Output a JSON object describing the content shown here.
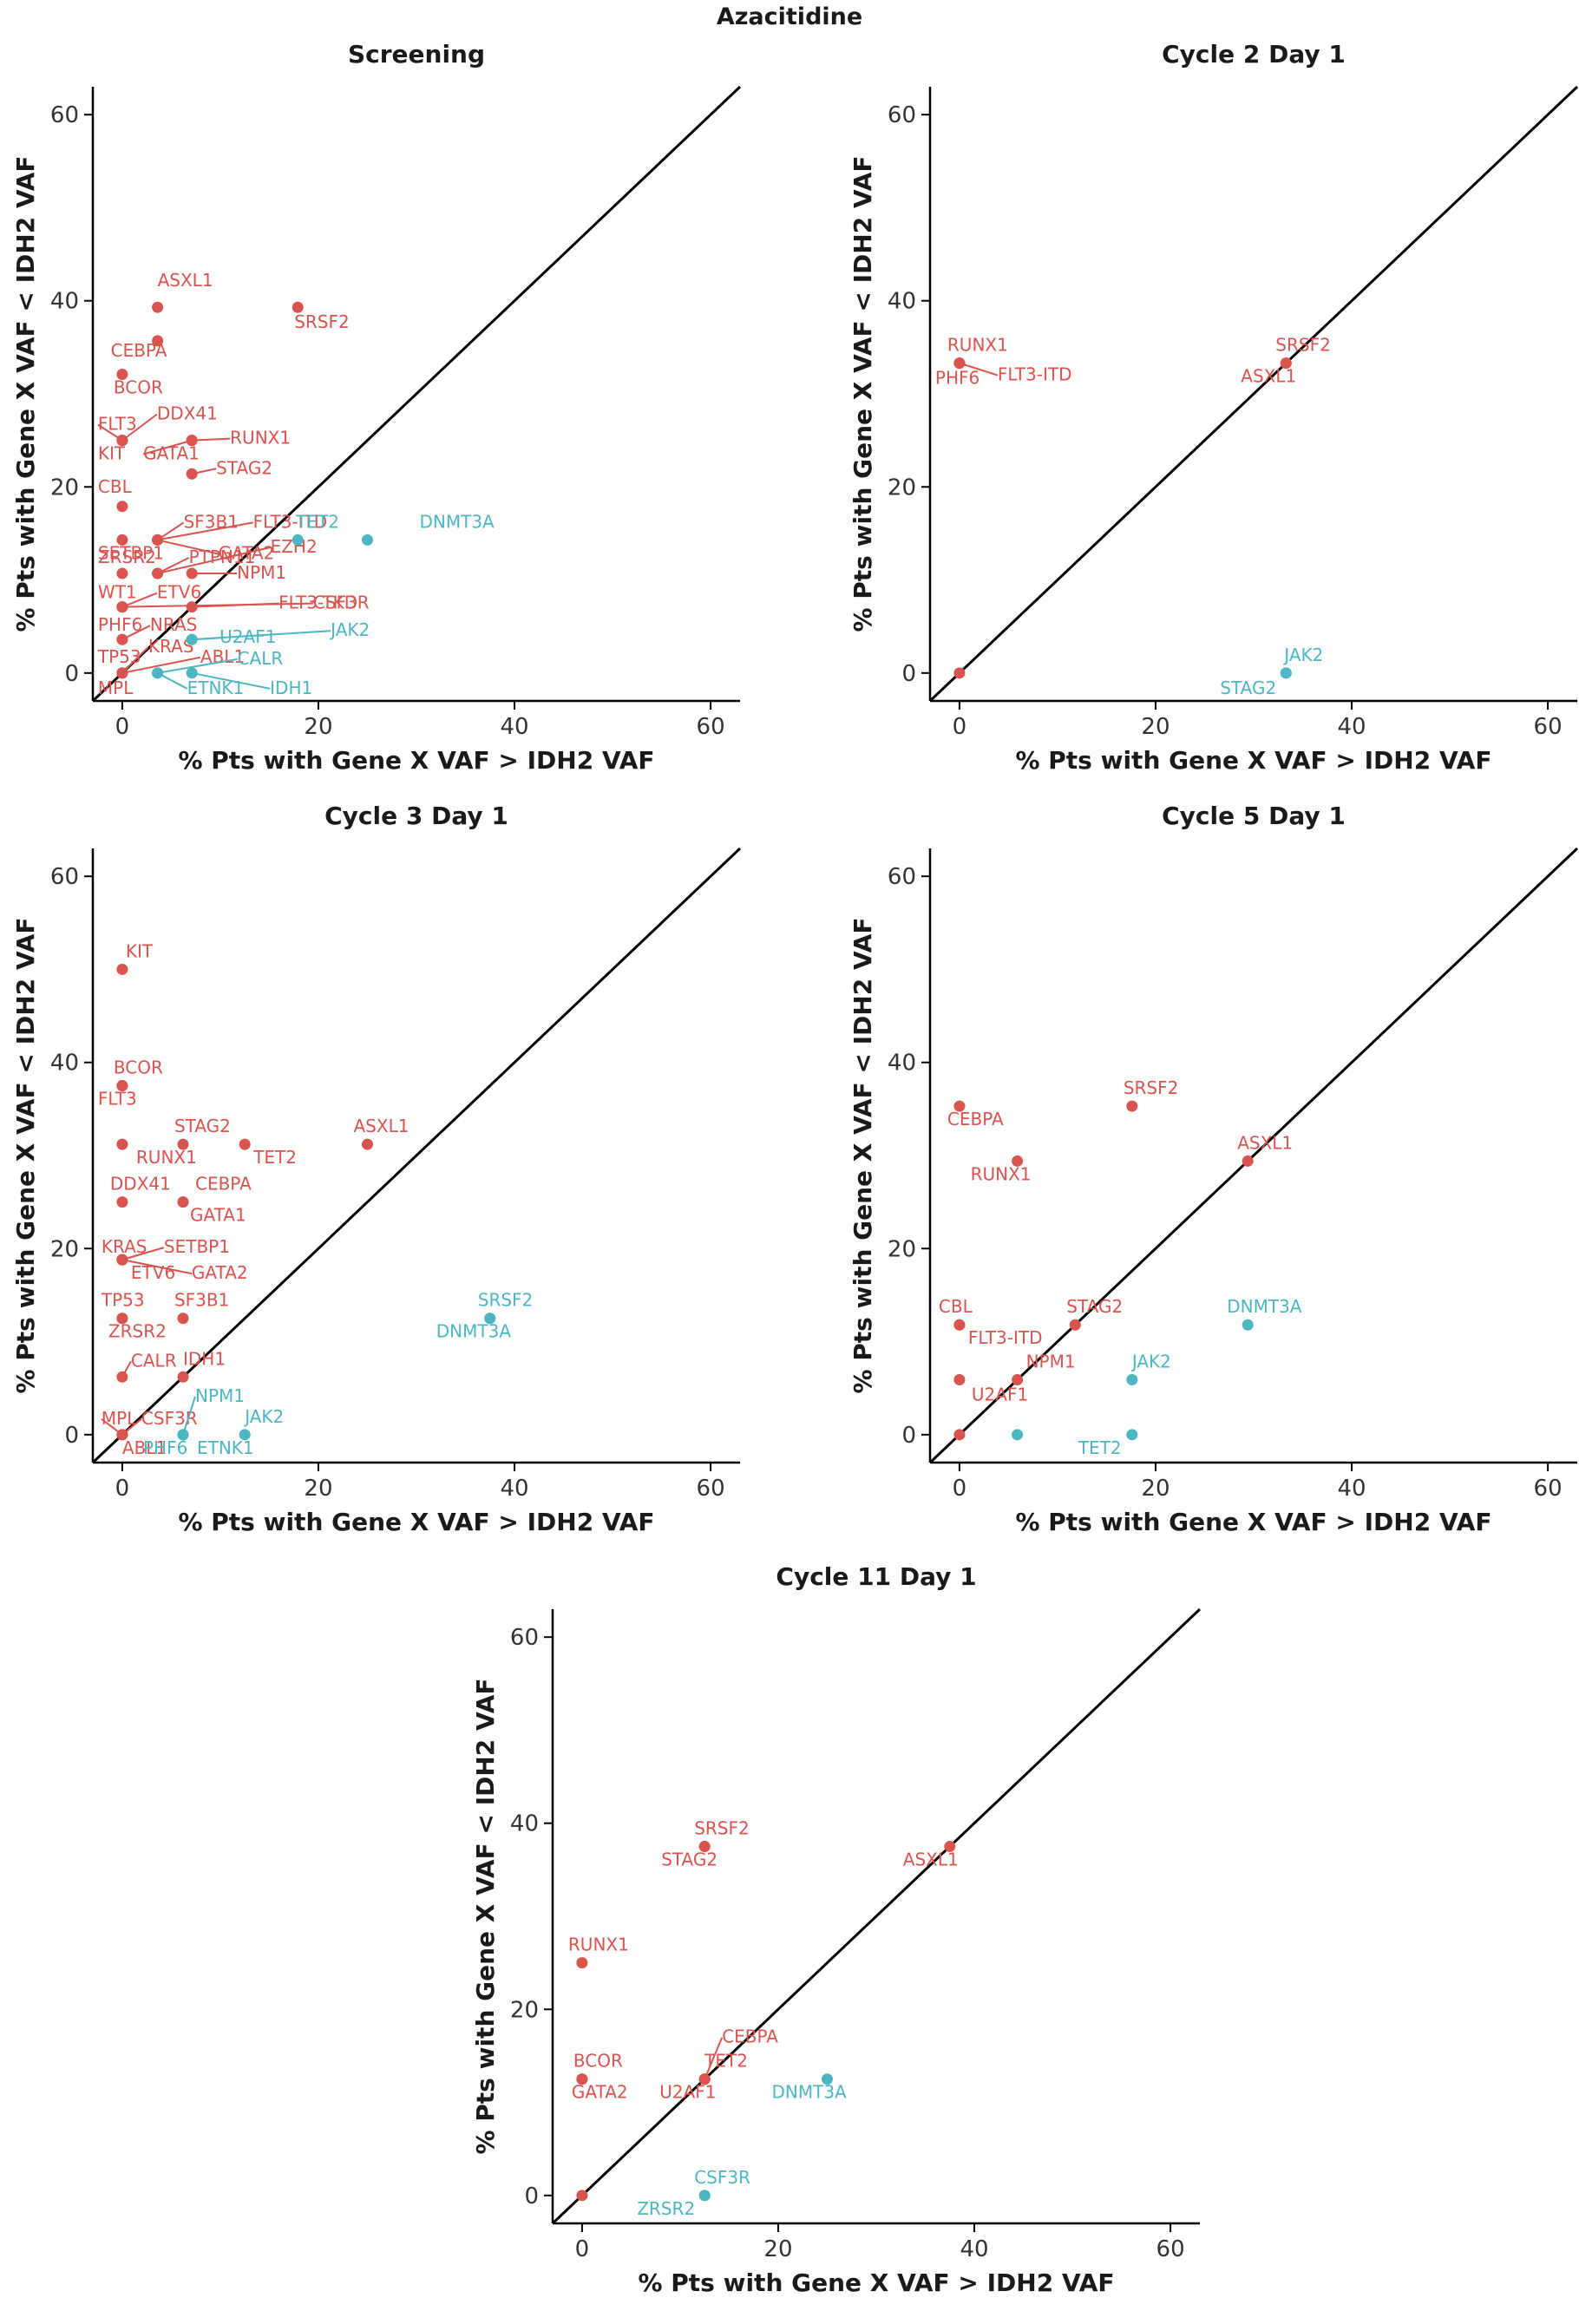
{
  "title": "Azacitidine",
  "colors": {
    "above": "#d9534f",
    "below": "#4db6c3",
    "axis": "#000000"
  },
  "chart_data": [
    {
      "type": "scatter",
      "title": "Screening",
      "xlabel": "% Pts with Gene X VAF > IDH2 VAF",
      "ylabel": "% Pts with Gene X VAF < IDH2 VAF",
      "xlim": [
        -3,
        63
      ],
      "ylim": [
        -3,
        63
      ],
      "xticks": [
        "0",
        "20",
        "40",
        "60"
      ],
      "yticks": [
        "0",
        "20",
        "40",
        "60"
      ],
      "reference_line": "y = x",
      "points": [
        {
          "label": "ASXL1",
          "x": 3.6,
          "y": 39.3,
          "group": "above"
        },
        {
          "label": "SRSF2",
          "x": 17.9,
          "y": 39.3,
          "group": "above"
        },
        {
          "label": "CEBPA",
          "x": 3.6,
          "y": 35.7,
          "group": "above"
        },
        {
          "label": "BCOR",
          "x": 0,
          "y": 32.1,
          "group": "above"
        },
        {
          "label": "FLT3",
          "x": 0,
          "y": 25.0,
          "group": "above"
        },
        {
          "label": "KIT",
          "x": 0,
          "y": 25.0,
          "group": "above"
        },
        {
          "label": "DDX41",
          "x": 0,
          "y": 25.0,
          "group": "above"
        },
        {
          "label": "RUNX1",
          "x": 7.1,
          "y": 25.0,
          "group": "above"
        },
        {
          "label": "GATA1",
          "x": 7.1,
          "y": 25.0,
          "group": "above"
        },
        {
          "label": "STAG2",
          "x": 7.1,
          "y": 21.4,
          "group": "above"
        },
        {
          "label": "CBL",
          "x": 0,
          "y": 17.9,
          "group": "above"
        },
        {
          "label": "SF3B1",
          "x": 3.6,
          "y": 14.3,
          "group": "above"
        },
        {
          "label": "FLT3-ITD",
          "x": 3.6,
          "y": 14.3,
          "group": "above"
        },
        {
          "label": "SETBP1",
          "x": 0,
          "y": 14.3,
          "group": "above"
        },
        {
          "label": "GATA2",
          "x": 3.6,
          "y": 14.3,
          "group": "above"
        },
        {
          "label": "ZRSR2",
          "x": 0,
          "y": 10.7,
          "group": "above"
        },
        {
          "label": "PTPN11",
          "x": 3.6,
          "y": 10.7,
          "group": "above"
        },
        {
          "label": "EZH2",
          "x": 3.6,
          "y": 10.7,
          "group": "above"
        },
        {
          "label": "NPM1",
          "x": 7.1,
          "y": 10.7,
          "group": "above"
        },
        {
          "label": "WT1",
          "x": 0,
          "y": 7.1,
          "group": "above"
        },
        {
          "label": "ETV6",
          "x": 0,
          "y": 7.1,
          "group": "above"
        },
        {
          "label": "FLT3-TKD",
          "x": 7.1,
          "y": 7.1,
          "group": "above"
        },
        {
          "label": "CSF3R",
          "x": 0,
          "y": 7.1,
          "group": "above"
        },
        {
          "label": "PHF6",
          "x": 0,
          "y": 3.6,
          "group": "above"
        },
        {
          "label": "NRAS",
          "x": 0,
          "y": 3.6,
          "group": "above"
        },
        {
          "label": "TP53",
          "x": 0,
          "y": 0,
          "group": "above"
        },
        {
          "label": "KRAS",
          "x": 0,
          "y": 0,
          "group": "above"
        },
        {
          "label": "ABL1",
          "x": 0,
          "y": 0,
          "group": "above"
        },
        {
          "label": "MPL",
          "x": 0,
          "y": 0,
          "group": "above"
        },
        {
          "label": "TET2",
          "x": 17.9,
          "y": 14.3,
          "group": "below"
        },
        {
          "label": "DNMT3A",
          "x": 25.0,
          "y": 14.3,
          "group": "below"
        },
        {
          "label": "U2AF1",
          "x": 7.1,
          "y": 3.6,
          "group": "below"
        },
        {
          "label": "JAK2",
          "x": 7.1,
          "y": 3.6,
          "group": "below"
        },
        {
          "label": "CALR",
          "x": 3.6,
          "y": 0,
          "group": "below"
        },
        {
          "label": "ETNK1",
          "x": 3.6,
          "y": 0,
          "group": "below"
        },
        {
          "label": "IDH1",
          "x": 7.1,
          "y": 0,
          "group": "below"
        }
      ]
    },
    {
      "type": "scatter",
      "title": "Cycle 2 Day 1",
      "xlabel": "% Pts with Gene X VAF > IDH2 VAF",
      "ylabel": "% Pts with Gene X VAF < IDH2 VAF",
      "xlim": [
        -3,
        63
      ],
      "ylim": [
        -3,
        63
      ],
      "xticks": [
        "0",
        "20",
        "40",
        "60"
      ],
      "yticks": [
        "0",
        "20",
        "40",
        "60"
      ],
      "reference_line": "y = x",
      "points": [
        {
          "label": "RUNX1",
          "x": 0,
          "y": 33.3,
          "group": "above"
        },
        {
          "label": "PHF6",
          "x": 0,
          "y": 33.3,
          "group": "above"
        },
        {
          "label": "FLT3-ITD",
          "x": 0,
          "y": 33.3,
          "group": "above"
        },
        {
          "label": "SRSF2",
          "x": 33.3,
          "y": 33.3,
          "group": "above"
        },
        {
          "label": "ASXL1",
          "x": 33.3,
          "y": 33.3,
          "group": "above"
        },
        {
          "label": "",
          "x": 0,
          "y": 0,
          "group": "above"
        },
        {
          "label": "JAK2",
          "x": 33.3,
          "y": 0,
          "group": "below"
        },
        {
          "label": "STAG2",
          "x": 33.3,
          "y": 0,
          "group": "below"
        }
      ]
    },
    {
      "type": "scatter",
      "title": "Cycle 3 Day 1",
      "xlabel": "% Pts with Gene X VAF > IDH2 VAF",
      "ylabel": "% Pts with Gene X VAF < IDH2 VAF",
      "xlim": [
        -3,
        63
      ],
      "ylim": [
        -3,
        63
      ],
      "xticks": [
        "0",
        "20",
        "40",
        "60"
      ],
      "yticks": [
        "0",
        "20",
        "40",
        "60"
      ],
      "reference_line": "y = x",
      "points": [
        {
          "label": "KIT",
          "x": 0,
          "y": 50.0,
          "group": "above"
        },
        {
          "label": "BCOR",
          "x": 0,
          "y": 37.5,
          "group": "above"
        },
        {
          "label": "FLT3",
          "x": 0,
          "y": 37.5,
          "group": "above"
        },
        {
          "label": "STAG2",
          "x": 6.2,
          "y": 31.2,
          "group": "above"
        },
        {
          "label": "RUNX1",
          "x": 0,
          "y": 31.2,
          "group": "above"
        },
        {
          "label": "TET2",
          "x": 12.5,
          "y": 31.2,
          "group": "above"
        },
        {
          "label": "ASXL1",
          "x": 25.0,
          "y": 31.2,
          "group": "above"
        },
        {
          "label": "DDX41",
          "x": 0,
          "y": 25.0,
          "group": "above"
        },
        {
          "label": "CEBPA",
          "x": 6.2,
          "y": 25.0,
          "group": "above"
        },
        {
          "label": "GATA1",
          "x": 6.2,
          "y": 25.0,
          "group": "above"
        },
        {
          "label": "KRAS",
          "x": 0,
          "y": 18.8,
          "group": "above"
        },
        {
          "label": "SETBP1",
          "x": 0,
          "y": 18.8,
          "group": "above"
        },
        {
          "label": "ETV6",
          "x": 0,
          "y": 18.8,
          "group": "above"
        },
        {
          "label": "GATA2",
          "x": 0,
          "y": 18.8,
          "group": "above"
        },
        {
          "label": "TP53",
          "x": 0,
          "y": 12.5,
          "group": "above"
        },
        {
          "label": "SF3B1",
          "x": 6.2,
          "y": 12.5,
          "group": "above"
        },
        {
          "label": "ZRSR2",
          "x": 0,
          "y": 12.5,
          "group": "above"
        },
        {
          "label": "IDH1",
          "x": 6.2,
          "y": 6.2,
          "group": "above"
        },
        {
          "label": "CALR",
          "x": 0,
          "y": 6.2,
          "group": "above"
        },
        {
          "label": "MPL",
          "x": 0,
          "y": 0,
          "group": "above"
        },
        {
          "label": "CSF3R",
          "x": 0,
          "y": 0,
          "group": "above"
        },
        {
          "label": "ABL1",
          "x": 0,
          "y": 0,
          "group": "above"
        },
        {
          "label": "SRSF2",
          "x": 37.5,
          "y": 12.5,
          "group": "below"
        },
        {
          "label": "DNMT3A",
          "x": 37.5,
          "y": 12.5,
          "group": "below"
        },
        {
          "label": "NPM1",
          "x": 6.2,
          "y": 0,
          "group": "below"
        },
        {
          "label": "PHF6",
          "x": 6.2,
          "y": 0,
          "group": "below"
        },
        {
          "label": "ETNK1",
          "x": 6.2,
          "y": 0,
          "group": "below"
        },
        {
          "label": "JAK2",
          "x": 12.5,
          "y": 0,
          "group": "below"
        }
      ]
    },
    {
      "type": "scatter",
      "title": "Cycle 5 Day 1",
      "xlabel": "% Pts with Gene X VAF > IDH2 VAF",
      "ylabel": "% Pts with Gene X VAF < IDH2 VAF",
      "xlim": [
        -3,
        63
      ],
      "ylim": [
        -3,
        63
      ],
      "xticks": [
        "0",
        "20",
        "40",
        "60"
      ],
      "yticks": [
        "0",
        "20",
        "40",
        "60"
      ],
      "reference_line": "y = x",
      "points": [
        {
          "label": "CEBPA",
          "x": 0,
          "y": 35.3,
          "group": "above"
        },
        {
          "label": "SRSF2",
          "x": 17.6,
          "y": 35.3,
          "group": "above"
        },
        {
          "label": "RUNX1",
          "x": 5.9,
          "y": 29.4,
          "group": "above"
        },
        {
          "label": "ASXL1",
          "x": 29.4,
          "y": 29.4,
          "group": "above"
        },
        {
          "label": "CBL",
          "x": 0,
          "y": 11.8,
          "group": "above"
        },
        {
          "label": "FLT3-ITD",
          "x": 0,
          "y": 11.8,
          "group": "above"
        },
        {
          "label": "STAG2",
          "x": 11.8,
          "y": 11.8,
          "group": "above"
        },
        {
          "label": "NPM1",
          "x": 5.9,
          "y": 5.9,
          "group": "above"
        },
        {
          "label": "U2AF1",
          "x": 0,
          "y": 5.9,
          "group": "above"
        },
        {
          "label": "",
          "x": 0,
          "y": 0,
          "group": "above"
        },
        {
          "label": "DNMT3A",
          "x": 29.4,
          "y": 11.8,
          "group": "below"
        },
        {
          "label": "JAK2",
          "x": 17.6,
          "y": 5.9,
          "group": "below"
        },
        {
          "label": "TET2",
          "x": 17.6,
          "y": 0,
          "group": "below"
        },
        {
          "label": "",
          "x": 5.9,
          "y": 0,
          "group": "below"
        }
      ]
    },
    {
      "type": "scatter",
      "title": "Cycle 11 Day 1",
      "xlabel": "% Pts with Gene X VAF > IDH2 VAF",
      "ylabel": "% Pts with Gene X VAF < IDH2 VAF",
      "xlim": [
        -3,
        63
      ],
      "ylim": [
        -3,
        63
      ],
      "xticks": [
        "0",
        "20",
        "40",
        "60"
      ],
      "yticks": [
        "0",
        "20",
        "40",
        "60"
      ],
      "reference_line": "y = x",
      "points": [
        {
          "label": "SRSF2",
          "x": 12.5,
          "y": 37.5,
          "group": "above"
        },
        {
          "label": "STAG2",
          "x": 12.5,
          "y": 37.5,
          "group": "above"
        },
        {
          "label": "ASXL1",
          "x": 37.5,
          "y": 37.5,
          "group": "above"
        },
        {
          "label": "RUNX1",
          "x": 0,
          "y": 25.0,
          "group": "above"
        },
        {
          "label": "BCOR",
          "x": 0,
          "y": 12.5,
          "group": "above"
        },
        {
          "label": "GATA2",
          "x": 0,
          "y": 12.5,
          "group": "above"
        },
        {
          "label": "CEBPA",
          "x": 12.5,
          "y": 12.5,
          "group": "above"
        },
        {
          "label": "TET2",
          "x": 12.5,
          "y": 12.5,
          "group": "above"
        },
        {
          "label": "U2AF1",
          "x": 12.5,
          "y": 12.5,
          "group": "above"
        },
        {
          "label": "",
          "x": 0,
          "y": 0,
          "group": "above"
        },
        {
          "label": "DNMT3A",
          "x": 25.0,
          "y": 12.5,
          "group": "below"
        },
        {
          "label": "CSF3R",
          "x": 12.5,
          "y": 0,
          "group": "below"
        },
        {
          "label": "ZRSR2",
          "x": 12.5,
          "y": 0,
          "group": "below"
        }
      ]
    }
  ]
}
